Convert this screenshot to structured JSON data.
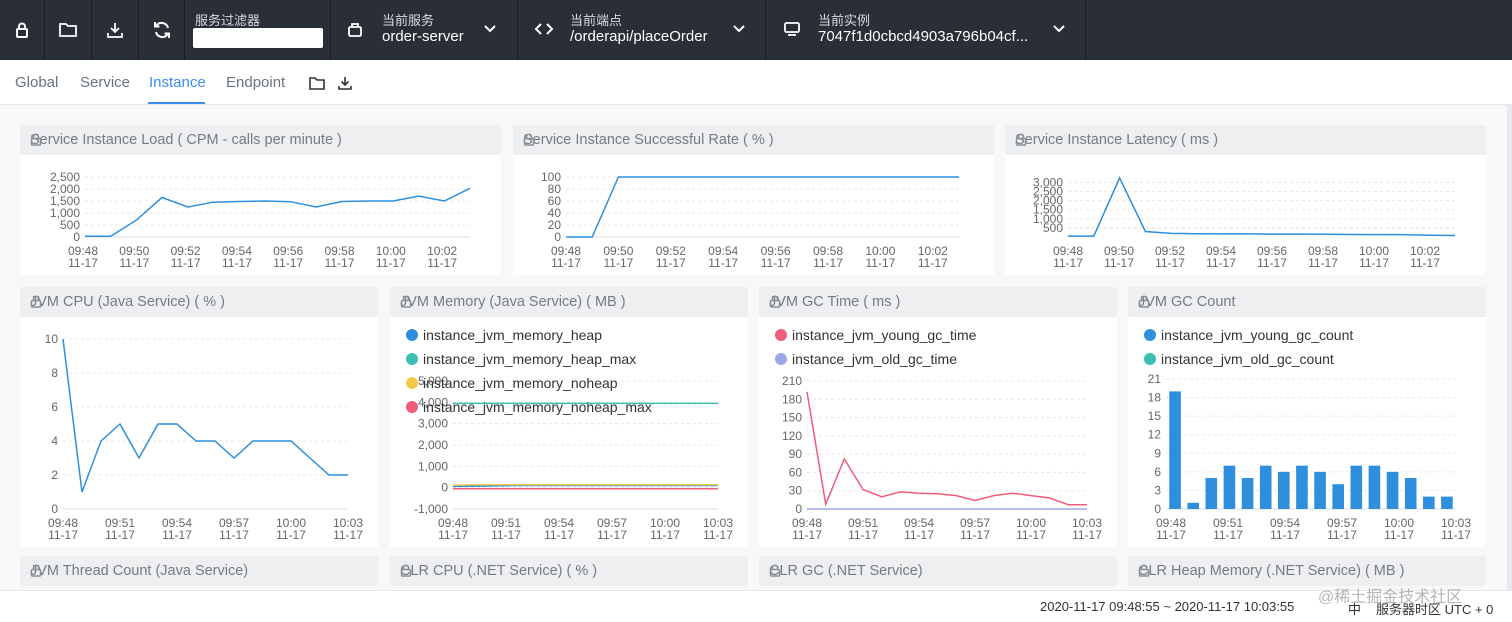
{
  "topbar": {
    "filter_label": "服务过滤器",
    "filter_value": "",
    "service": {
      "label": "当前服务",
      "value": "order-server"
    },
    "endpoint": {
      "label": "当前端点",
      "value": "/orderapi/placeOrder"
    },
    "instance": {
      "label": "当前实例",
      "value": "7047f1d0cbcd4903a796b04cf..."
    }
  },
  "tabs": [
    "Global",
    "Service",
    "Instance",
    "Endpoint"
  ],
  "active_tab": "Instance",
  "colors": {
    "accent": "#3d8df5",
    "topbar": "#2a2e36",
    "line": "#2d8fdd",
    "teal": "#3bbfb3",
    "yellow": "#f6c84c",
    "pink": "#ef5d7a",
    "lavender": "#9aa9e6"
  },
  "footer": {
    "range": "2020-11-17 09:48:55 ~ 2020-11-17 10:03:55",
    "lang": "中",
    "tz": "服务器时区 UTC + 0"
  },
  "watermark": "@稀土掘金技术社区",
  "panels": {
    "p1": {
      "title": "Service Instance Load ( CPM - calls per minute )"
    },
    "p2": {
      "title": "Service Instance Successful Rate ( % )"
    },
    "p3": {
      "title": "Service Instance Latency ( ms )"
    },
    "p4": {
      "title": "JVM CPU (Java Service) ( % )"
    },
    "p5": {
      "title": "JVM Memory (Java Service) ( MB )"
    },
    "p6": {
      "title": "JVM GC Time ( ms )"
    },
    "p7": {
      "title": "JVM GC Count"
    },
    "p8": {
      "title": "JVM Thread Count (Java Service)"
    },
    "p9": {
      "title": "CLR CPU (.NET Service) ( % )"
    },
    "p10": {
      "title": "CLR GC (.NET Service)"
    },
    "p11": {
      "title": "CLR Heap Memory (.NET Service) ( MB )"
    }
  },
  "chart_data": [
    {
      "id": "load",
      "type": "line",
      "title": "Service Instance Load ( CPM - calls per minute )",
      "x_ticks": [
        "09:48",
        "09:50",
        "09:52",
        "09:54",
        "09:56",
        "09:58",
        "10:00",
        "10:02"
      ],
      "x_sub": "11-17",
      "y_ticks": [
        "0",
        "500",
        "1,000",
        "1,500",
        "2,000",
        "2,500"
      ],
      "ylim": [
        0,
        2500
      ],
      "series": [
        {
          "name": "load",
          "values": [
            30,
            30,
            700,
            1650,
            1250,
            1450,
            1480,
            1500,
            1470,
            1250,
            1480,
            1500,
            1500,
            1700,
            1500,
            2030
          ]
        }
      ]
    },
    {
      "id": "success",
      "type": "line",
      "title": "Service Instance Successful Rate ( % )",
      "x_ticks": [
        "09:48",
        "09:50",
        "09:52",
        "09:54",
        "09:56",
        "09:58",
        "10:00",
        "10:02"
      ],
      "x_sub": "11-17",
      "y_ticks": [
        "0",
        "20",
        "40",
        "60",
        "80",
        "100"
      ],
      "ylim": [
        0,
        100
      ],
      "series": [
        {
          "name": "success",
          "values": [
            0,
            0,
            100,
            100,
            100,
            100,
            100,
            100,
            100,
            100,
            100,
            100,
            100,
            100,
            100,
            100
          ]
        }
      ]
    },
    {
      "id": "latency",
      "type": "line",
      "title": "Service Instance Latency ( ms )",
      "x_ticks": [
        "09:48",
        "09:50",
        "09:52",
        "09:54",
        "09:56",
        "09:58",
        "10:00",
        "10:02"
      ],
      "x_sub": "11-17",
      "y_ticks": [
        "500",
        "1,000",
        "1,500",
        "2,000",
        "2,500",
        "3,000"
      ],
      "ylim": [
        0,
        3300
      ],
      "series": [
        {
          "name": "latency",
          "values": [
            50,
            50,
            3250,
            300,
            200,
            180,
            170,
            170,
            160,
            160,
            150,
            140,
            130,
            130,
            100,
            80
          ]
        }
      ]
    },
    {
      "id": "jvmcpu",
      "type": "line",
      "title": "JVM CPU (Java Service) ( % )",
      "x_ticks": [
        "09:48",
        "09:51",
        "09:54",
        "09:57",
        "10:00",
        "10:03"
      ],
      "x_sub": "11-17",
      "y_ticks": [
        "0",
        "2",
        "4",
        "6",
        "8",
        "10"
      ],
      "ylim": [
        0,
        10
      ],
      "series": [
        {
          "name": "cpu",
          "values": [
            10,
            1,
            4,
            5,
            3,
            5,
            5,
            4,
            4,
            3,
            4,
            4,
            4,
            3,
            2,
            2
          ]
        }
      ]
    },
    {
      "id": "jvmmem",
      "type": "line",
      "title": "JVM Memory (Java Service) ( MB )",
      "x_ticks": [
        "09:48",
        "09:51",
        "09:54",
        "09:57",
        "10:00",
        "10:03"
      ],
      "x_sub": "11-17",
      "y_ticks": [
        "-1,000",
        "0",
        "1,000",
        "2,000",
        "3,000",
        "4,000",
        "5,000"
      ],
      "ylim": [
        -1000,
        5000
      ],
      "legend": [
        "instance_jvm_memory_heap",
        "instance_jvm_memory_heap_max",
        "instance_jvm_memory_noheap",
        "instance_jvm_memory_noheap_max"
      ],
      "series": [
        {
          "name": "instance_jvm_memory_heap",
          "values": [
            60,
            70,
            80,
            90,
            100,
            100,
            100,
            100,
            100,
            100,
            100,
            100,
            100,
            100,
            100,
            100
          ]
        },
        {
          "name": "instance_jvm_memory_heap_max",
          "values": [
            3950,
            3950,
            3950,
            3950,
            3950,
            3950,
            3950,
            3950,
            3950,
            3950,
            3950,
            3950,
            3950,
            3950,
            3950,
            3950
          ]
        },
        {
          "name": "instance_jvm_memory_noheap",
          "values": [
            120,
            130,
            140,
            140,
            140,
            140,
            140,
            140,
            140,
            140,
            140,
            140,
            140,
            140,
            140,
            140
          ]
        },
        {
          "name": "instance_jvm_memory_noheap_max",
          "values": [
            -50,
            -50,
            -50,
            -50,
            -50,
            -50,
            -50,
            -50,
            -50,
            -50,
            -50,
            -50,
            -50,
            -50,
            -50,
            -50
          ]
        }
      ]
    },
    {
      "id": "gctime",
      "type": "line",
      "title": "JVM GC Time ( ms )",
      "x_ticks": [
        "09:48",
        "09:51",
        "09:54",
        "09:57",
        "10:00",
        "10:03"
      ],
      "x_sub": "11-17",
      "y_ticks": [
        "0",
        "30",
        "60",
        "90",
        "120",
        "150",
        "180",
        "210"
      ],
      "ylim": [
        0,
        210
      ],
      "legend": [
        "instance_jvm_young_gc_time",
        "instance_jvm_old_gc_time"
      ],
      "series": [
        {
          "name": "instance_jvm_young_gc_time",
          "values": [
            192,
            8,
            82,
            32,
            20,
            28,
            26,
            25,
            22,
            14,
            22,
            26,
            22,
            18,
            7,
            7
          ]
        },
        {
          "name": "instance_jvm_old_gc_time",
          "values": [
            0,
            0,
            0,
            0,
            0,
            0,
            0,
            0,
            0,
            0,
            0,
            0,
            0,
            0,
            0,
            0
          ]
        }
      ]
    },
    {
      "id": "gccount",
      "type": "bar",
      "title": "JVM GC Count",
      "x_ticks": [
        "09:48",
        "09:51",
        "09:54",
        "09:57",
        "10:00",
        "10:03"
      ],
      "x_sub": "11-17",
      "y_ticks": [
        "0",
        "3",
        "6",
        "9",
        "12",
        "15",
        "18",
        "21"
      ],
      "ylim": [
        0,
        21
      ],
      "legend": [
        "instance_jvm_young_gc_count",
        "instance_jvm_old_gc_count"
      ],
      "series": [
        {
          "name": "instance_jvm_young_gc_count",
          "values": [
            19,
            1,
            5,
            7,
            5,
            7,
            6,
            7,
            6,
            4,
            7,
            7,
            6,
            5,
            2,
            2
          ]
        },
        {
          "name": "instance_jvm_old_gc_count",
          "values": [
            0,
            0,
            0,
            0,
            0,
            0,
            0,
            0,
            0,
            0,
            0,
            0,
            0,
            0,
            0,
            0
          ]
        }
      ]
    }
  ]
}
